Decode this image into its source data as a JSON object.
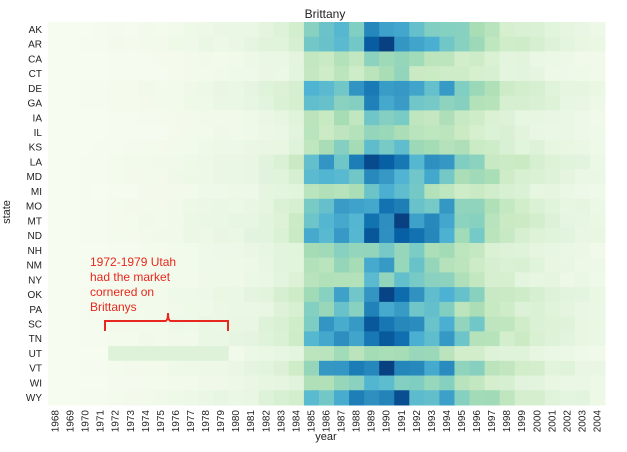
{
  "chart_data": {
    "type": "heatmap",
    "title": "Brittany",
    "xlabel": "year",
    "ylabel": "state",
    "columns": [
      1968,
      1969,
      1970,
      1971,
      1972,
      1973,
      1974,
      1975,
      1976,
      1977,
      1978,
      1979,
      1980,
      1981,
      1982,
      1983,
      1984,
      1985,
      1986,
      1987,
      1988,
      1989,
      1990,
      1991,
      1992,
      1993,
      1994,
      1995,
      1996,
      1997,
      1998,
      1999,
      2000,
      2001,
      2002,
      2003,
      2004
    ],
    "x_tick_labels": [
      "1968",
      "1969",
      "1970",
      "1971",
      "1972",
      "1973",
      "1974",
      "1975",
      "1976",
      "1977",
      "1978",
      "1979",
      "1980",
      "1981",
      "1982",
      "1983",
      "1984",
      "1985",
      "1986",
      "1987",
      "1988",
      "1989",
      "1990",
      "1991",
      "1992",
      "1993",
      "1994",
      "1995",
      "1996",
      "1997",
      "1998",
      "1999",
      "2000",
      "2001",
      "2002",
      "2003",
      "2004"
    ],
    "rows": [
      "AK",
      "AR",
      "CA",
      "CT",
      "DE",
      "GA",
      "IA",
      "IL",
      "KS",
      "LA",
      "MD",
      "MI",
      "MO",
      "MT",
      "ND",
      "NH",
      "NM",
      "NY",
      "OK",
      "PA",
      "SC",
      "TN",
      "UT",
      "VT",
      "WI",
      "WY"
    ],
    "y_tick_labels": [
      "AK",
      "AR",
      "CA",
      "CT",
      "DE",
      "GA",
      "IA",
      "IL",
      "KS",
      "LA",
      "MD",
      "MI",
      "MO",
      "MT",
      "ND",
      "NH",
      "NM",
      "NY",
      "OK",
      "PA",
      "SC",
      "TN",
      "UT",
      "VT",
      "WI",
      "WY"
    ],
    "value_scale": "relative popularity 0-1 (estimated from color)",
    "row_peak_intensity": {
      "AK": 0.78,
      "AR": 0.9,
      "CA": 0.45,
      "CT": 0.42,
      "DE": 0.92,
      "GA": 0.85,
      "IA": 0.5,
      "IL": 0.5,
      "KS": 0.62,
      "LA": 0.98,
      "MD": 0.9,
      "MI": 0.58,
      "MO": 0.9,
      "MT": 0.98,
      "ND": 0.98,
      "NH": 0.58,
      "NM": 0.62,
      "NY": 0.58,
      "OK": 0.92,
      "PA": 0.78,
      "SC": 0.97,
      "TN": 0.95,
      "UT": 0.5,
      "VT": 0.95,
      "WI": 0.62,
      "WY": 0.97
    },
    "year_profile": [
      0,
      0,
      0.01,
      0.01,
      0.02,
      0.02,
      0.03,
      0.03,
      0.04,
      0.05,
      0.06,
      0.07,
      0.08,
      0.1,
      0.13,
      0.16,
      0.22,
      0.55,
      0.62,
      0.66,
      0.7,
      0.9,
      0.95,
      0.86,
      0.74,
      0.68,
      0.65,
      0.5,
      0.45,
      0.34,
      0.27,
      0.22,
      0.18,
      0.14,
      0.11,
      0.09,
      0.07
    ],
    "highlight": {
      "state": "UT",
      "from": 1972,
      "to": 1979,
      "level": 0.13
    },
    "annotation": {
      "lines": [
        "1972-1979 Utah",
        "had the market",
        "cornered on",
        "Brittanys"
      ],
      "color": "#e8281e"
    },
    "colormap": "GnBu"
  }
}
